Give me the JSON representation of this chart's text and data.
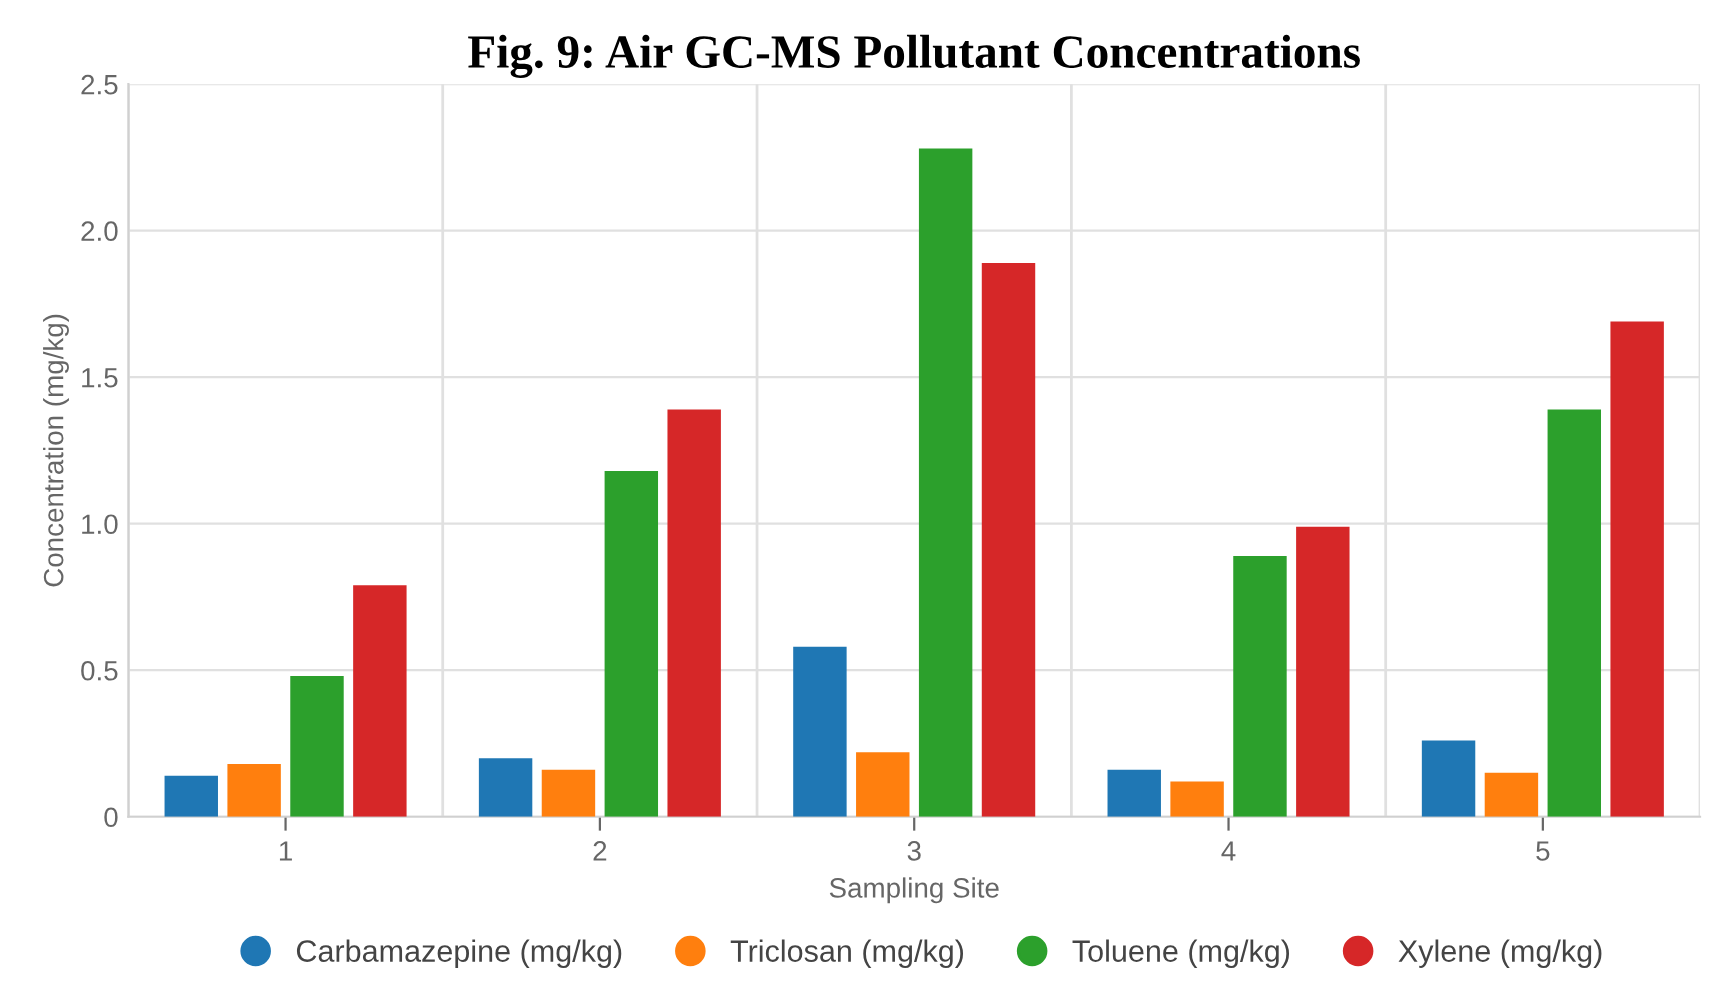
{
  "chart_data": {
    "type": "bar",
    "title": "Fig. 9: Air GC-MS Pollutant Concentrations",
    "xlabel": "Sampling Site",
    "ylabel": "Concentration (mg/kg)",
    "categories": [
      "1",
      "2",
      "3",
      "4",
      "5"
    ],
    "series": [
      {
        "name": "Carbamazepine (mg/kg)",
        "color": "#1f77b4",
        "values": [
          0.14,
          0.2,
          0.58,
          0.16,
          0.26
        ]
      },
      {
        "name": "Triclosan (mg/kg)",
        "color": "#ff7f0e",
        "values": [
          0.18,
          0.16,
          0.22,
          0.12,
          0.15
        ]
      },
      {
        "name": "Toluene (mg/kg)",
        "color": "#2ca02c",
        "values": [
          0.48,
          1.18,
          2.28,
          0.89,
          1.39
        ]
      },
      {
        "name": "Xylene (mg/kg)",
        "color": "#d62728",
        "values": [
          0.79,
          1.39,
          1.89,
          0.99,
          1.69
        ]
      }
    ],
    "ylim": [
      0,
      2.5
    ],
    "yticks": [
      {
        "value": 0,
        "label": "0"
      },
      {
        "value": 0.5,
        "label": "0.5"
      },
      {
        "value": 1,
        "label": "1.0"
      },
      {
        "value": 1.5,
        "label": "1.5"
      },
      {
        "value": 2,
        "label": "2.0"
      },
      {
        "value": 2.5,
        "label": "2.5"
      }
    ],
    "grid": true,
    "legend": "bottom"
  }
}
